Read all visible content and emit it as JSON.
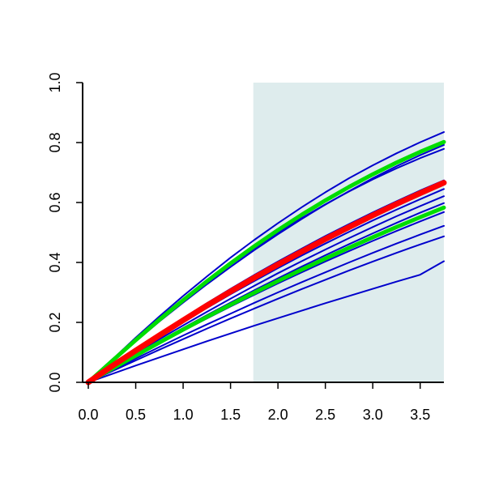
{
  "chart_data": {
    "type": "line",
    "title": "",
    "xlabel": "",
    "ylabel": "",
    "xlim": [
      -0.06,
      3.75
    ],
    "ylim": [
      0,
      1
    ],
    "x_ticks": [
      0.0,
      0.5,
      1.0,
      1.5,
      2.0,
      2.5,
      3.0,
      3.5
    ],
    "x_tick_labels": [
      "0.0",
      "0.5",
      "1.0",
      "1.5",
      "2.0",
      "2.5",
      "3.0",
      "3.5"
    ],
    "y_ticks": [
      0.0,
      0.2,
      0.4,
      0.6,
      0.8,
      1.0
    ],
    "y_tick_labels": [
      "0.0",
      "0.2",
      "0.4",
      "0.6",
      "0.8",
      "1.0"
    ],
    "shaded_region": {
      "x_from": 1.74,
      "x_to": 3.75,
      "color": "#deeced"
    },
    "grid": false,
    "legend": "none",
    "x": [
      0.0,
      0.25,
      0.5,
      0.75,
      1.0,
      1.25,
      1.5,
      1.75,
      2.0,
      2.25,
      2.5,
      2.75,
      3.0,
      3.25,
      3.5,
      3.75
    ],
    "series": [
      {
        "color": "#0000cc",
        "width": 2,
        "values": [
          0.0,
          0.072,
          0.142,
          0.209,
          0.273,
          0.334,
          0.392,
          0.447,
          0.499,
          0.548,
          0.594,
          0.637,
          0.677,
          0.714,
          0.748,
          0.779
        ]
      },
      {
        "color": "#0000cc",
        "width": 2,
        "values": [
          0.0,
          0.069,
          0.137,
          0.203,
          0.266,
          0.327,
          0.385,
          0.441,
          0.494,
          0.545,
          0.593,
          0.638,
          0.681,
          0.721,
          0.758,
          0.792
        ]
      },
      {
        "color": "#0000cc",
        "width": 2,
        "values": [
          0.0,
          0.075,
          0.149,
          0.22,
          0.288,
          0.353,
          0.416,
          0.475,
          0.531,
          0.584,
          0.634,
          0.681,
          0.724,
          0.764,
          0.801,
          0.835
        ]
      },
      {
        "color": "#0000cc",
        "width": 2,
        "values": [
          0.0,
          0.049,
          0.097,
          0.144,
          0.19,
          0.235,
          0.279,
          0.322,
          0.364,
          0.404,
          0.443,
          0.481,
          0.518,
          0.554,
          0.588,
          0.621
        ]
      },
      {
        "color": "#0000cc",
        "width": 2,
        "values": [
          0.0,
          0.046,
          0.092,
          0.137,
          0.181,
          0.224,
          0.266,
          0.307,
          0.347,
          0.386,
          0.424,
          0.461,
          0.497,
          0.532,
          0.566,
          0.598
        ]
      },
      {
        "color": "#0000cc",
        "width": 2,
        "values": [
          0.0,
          0.044,
          0.087,
          0.13,
          0.172,
          0.213,
          0.253,
          0.292,
          0.33,
          0.367,
          0.403,
          0.438,
          0.472,
          0.505,
          0.537,
          0.568
        ]
      },
      {
        "color": "#0000cc",
        "width": 2,
        "values": [
          0.0,
          0.04,
          0.079,
          0.118,
          0.156,
          0.193,
          0.229,
          0.265,
          0.3,
          0.334,
          0.367,
          0.4,
          0.432,
          0.463,
          0.493,
          0.522
        ]
      },
      {
        "color": "#0000cc",
        "width": 2,
        "values": [
          0.0,
          0.037,
          0.073,
          0.109,
          0.144,
          0.179,
          0.213,
          0.246,
          0.279,
          0.311,
          0.342,
          0.373,
          0.403,
          0.432,
          0.46,
          0.487
        ]
      },
      {
        "color": "#0000cc",
        "width": 2,
        "values": [
          0.0,
          0.028,
          0.056,
          0.083,
          0.11,
          0.137,
          0.163,
          0.189,
          0.214,
          0.239,
          0.264,
          0.288,
          0.312,
          0.336,
          0.359,
          0.404
        ]
      },
      {
        "color": "#0000cc",
        "width": 2,
        "values": [
          0.0,
          0.056,
          0.11,
          0.163,
          0.214,
          0.264,
          0.312,
          0.358,
          0.403,
          0.446,
          0.488,
          0.528,
          0.567,
          0.604,
          0.64,
          0.674
        ]
      },
      {
        "color": "#0000cc",
        "width": 2,
        "values": [
          0.0,
          0.052,
          0.103,
          0.153,
          0.201,
          0.248,
          0.294,
          0.338,
          0.381,
          0.423,
          0.463,
          0.502,
          0.54,
          0.576,
          0.611,
          0.645
        ]
      },
      {
        "color": "#00dd00",
        "width": 5,
        "values": [
          0.0,
          0.071,
          0.141,
          0.209,
          0.274,
          0.337,
          0.397,
          0.454,
          0.508,
          0.559,
          0.607,
          0.652,
          0.694,
          0.733,
          0.769,
          0.802
        ]
      },
      {
        "color": "#00dd00",
        "width": 5,
        "values": [
          0.0,
          0.045,
          0.089,
          0.133,
          0.176,
          0.218,
          0.259,
          0.299,
          0.338,
          0.376,
          0.413,
          0.449,
          0.484,
          0.518,
          0.551,
          0.583
        ]
      },
      {
        "color": "#ff0000",
        "width": 7,
        "values": [
          0.0,
          0.054,
          0.106,
          0.157,
          0.207,
          0.256,
          0.303,
          0.349,
          0.393,
          0.436,
          0.478,
          0.518,
          0.557,
          0.595,
          0.631,
          0.666
        ]
      }
    ]
  }
}
